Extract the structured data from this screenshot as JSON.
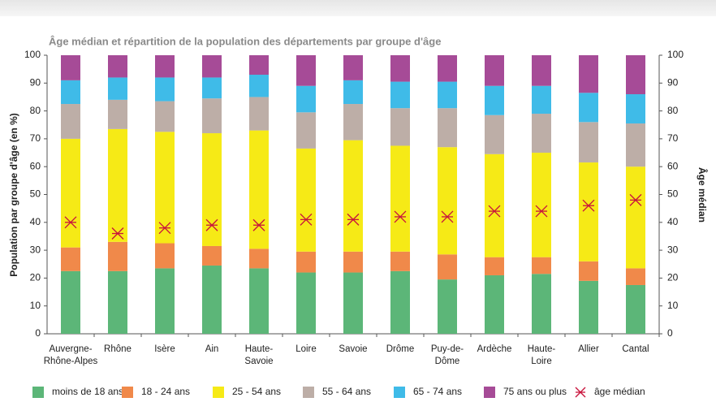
{
  "chart_data": {
    "type": "stacked-bar",
    "title": "Âge médian et répartition de la population des départements par groupe d'âge",
    "ylabel": "Population par groupe d'âge (en %)",
    "y2label": "Âge médian",
    "categories": [
      "Auvergne-\nRhône-Alpes",
      "Rhône",
      "Isère",
      "Ain",
      "Haute-\nSavoie",
      "Loire",
      "Savoie",
      "Drôme",
      "Puy-de-\nDôme",
      "Ardèche",
      "Haute-\nLoire",
      "Allier",
      "Cantal"
    ],
    "series": [
      {
        "name": "moins de 18 ans",
        "color": "#5cb678",
        "values": [
          22.5,
          22.5,
          23.5,
          24.5,
          23.5,
          22,
          22,
          22.5,
          19.5,
          21,
          21.5,
          19,
          17.5
        ]
      },
      {
        "name": "18 - 24 ans",
        "color": "#f0894a",
        "values": [
          8.5,
          10.5,
          9,
          7,
          7,
          7.5,
          7.5,
          7,
          9,
          6.5,
          6,
          7,
          6
        ]
      },
      {
        "name": "25 - 54 ans",
        "color": "#f6ea16",
        "values": [
          39,
          40.5,
          40,
          40.5,
          42.5,
          37,
          40,
          38,
          38.5,
          37,
          37.5,
          35.5,
          36.5
        ]
      },
      {
        "name": "55 - 64 ans",
        "color": "#bdaea7",
        "values": [
          12.5,
          10.5,
          11,
          12.5,
          12,
          13,
          13,
          13.5,
          14,
          14,
          14,
          14.5,
          15.5
        ]
      },
      {
        "name": "65 - 74 ans",
        "color": "#3fbbe8",
        "values": [
          8.5,
          8,
          8.5,
          7.5,
          8,
          9.5,
          8.5,
          9.5,
          9.5,
          10.5,
          10,
          10.5,
          10.5
        ]
      },
      {
        "name": "75 ans ou plus",
        "color": "#a64b97",
        "values": [
          9,
          8,
          8,
          8,
          7,
          11,
          9,
          9.5,
          9.5,
          11,
          11,
          13.5,
          14
        ]
      },
      {
        "name": "âge médian",
        "color": "#c8143c",
        "axis": "y2",
        "values": [
          40,
          36,
          38,
          39,
          39,
          41,
          41,
          42,
          42,
          44,
          44,
          46,
          48
        ]
      }
    ],
    "ylim": [
      0,
      100
    ],
    "yticks": [
      0,
      10,
      20,
      30,
      40,
      50,
      60,
      70,
      80,
      90,
      100
    ],
    "y2lim": [
      0,
      100
    ],
    "y2ticks": [
      0,
      10,
      20,
      30,
      40,
      50,
      60,
      70,
      80,
      90,
      100
    ],
    "legend": "bottom"
  }
}
